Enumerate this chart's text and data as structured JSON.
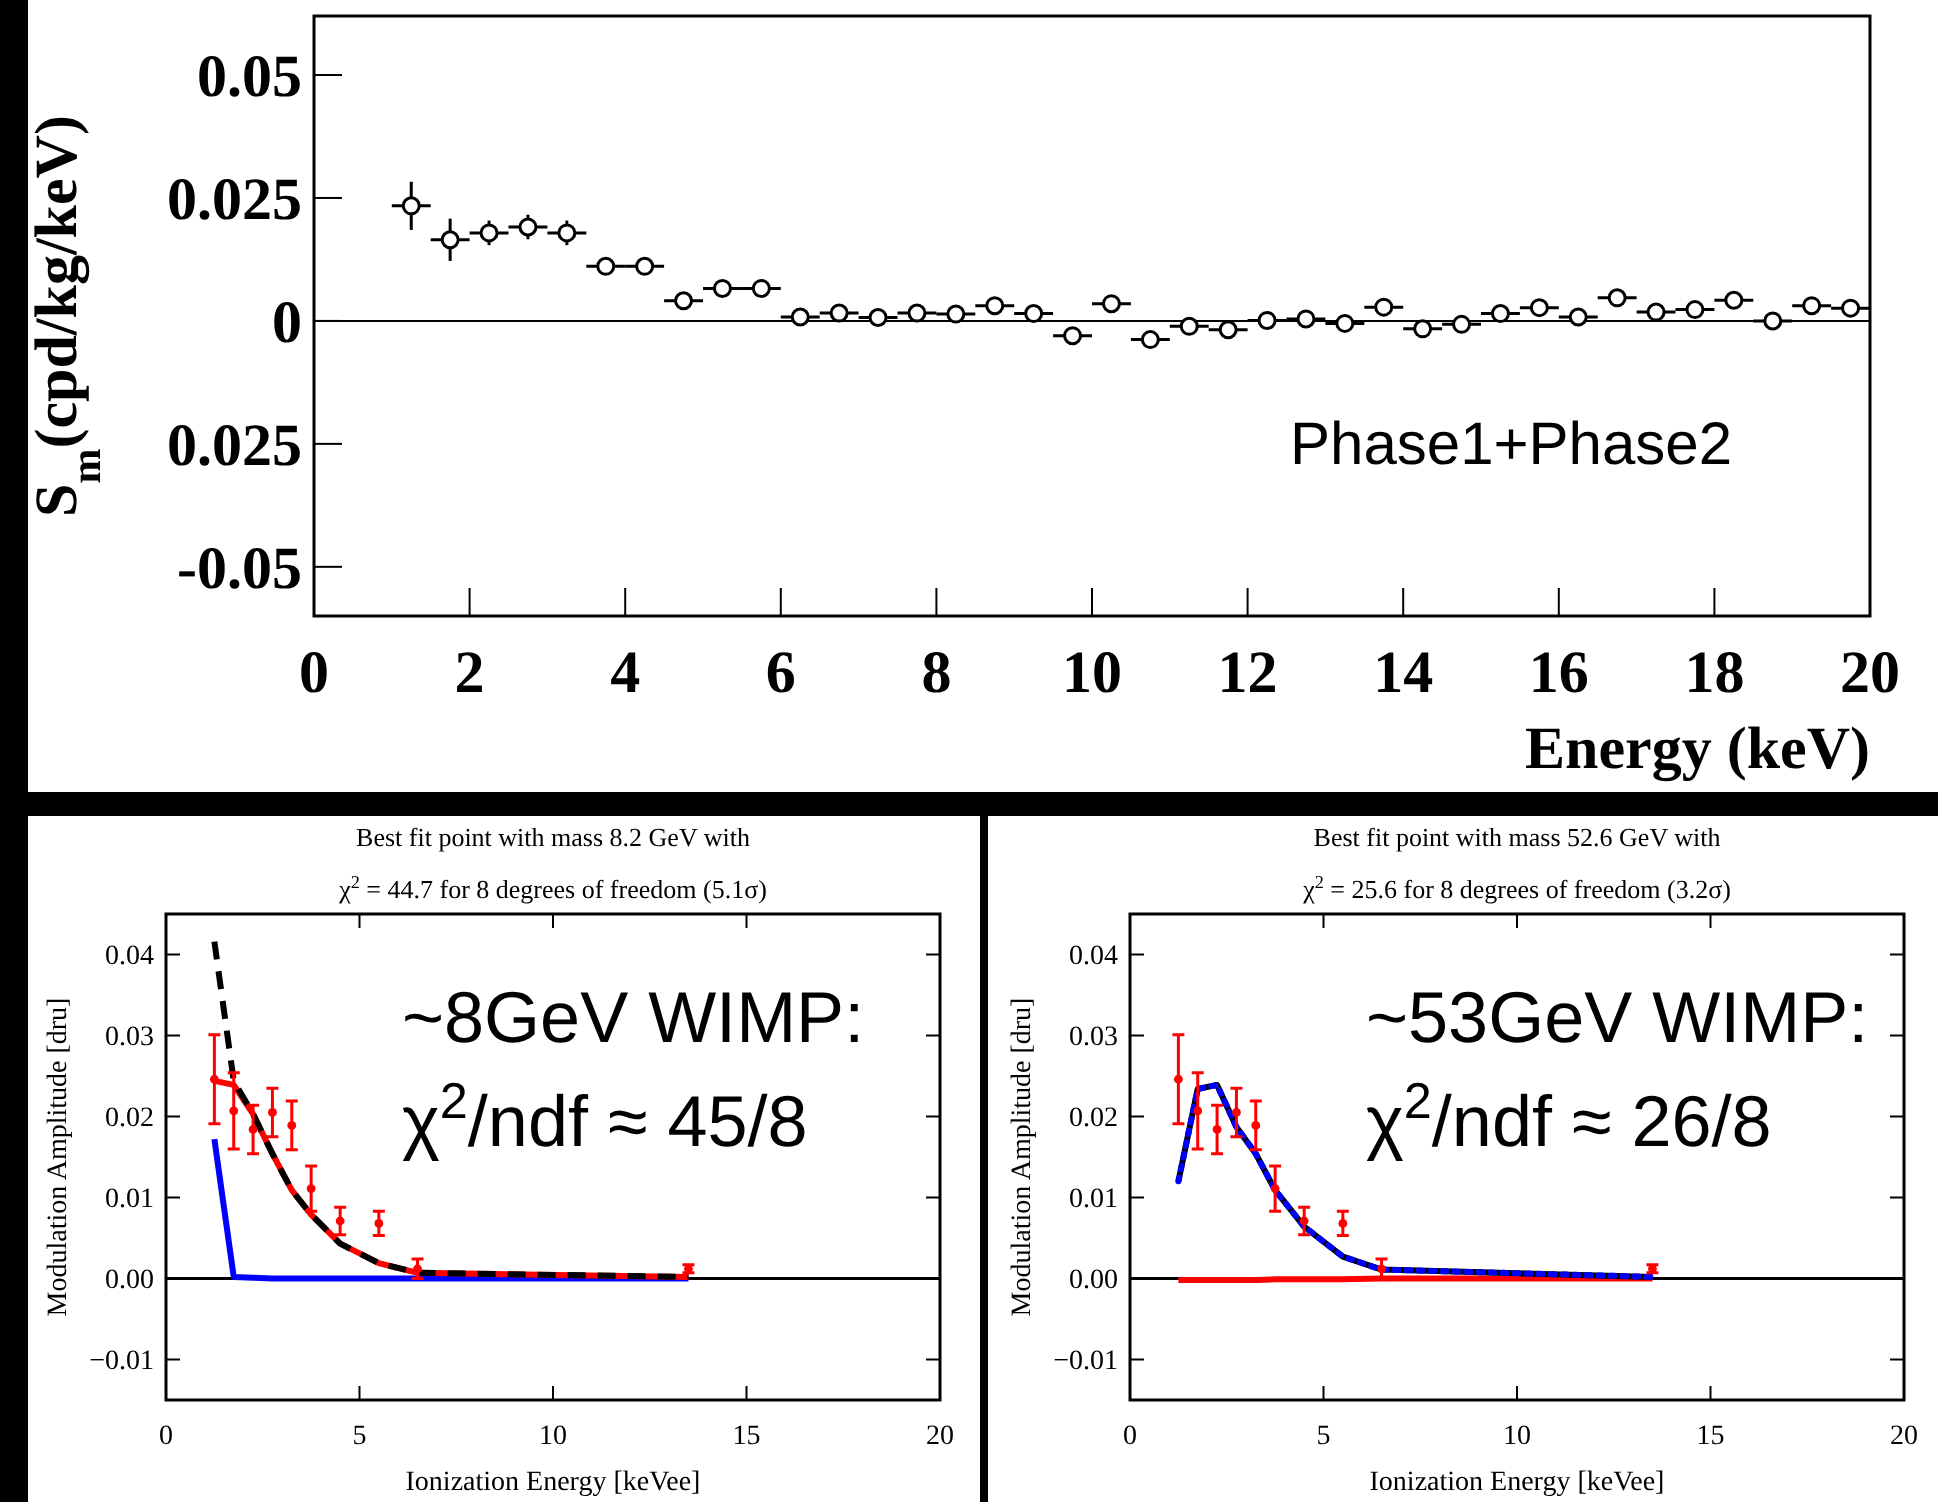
{
  "chart_data": [
    {
      "type": "scatter",
      "xlabel": "Energy (keV)",
      "ylabel": "S$_{m}$(cpd/kg/keV)",
      "annotations": [
        "Phase1+Phase2"
      ],
      "x": [
        1.25,
        1.75,
        2.25,
        2.75,
        3.25,
        3.75,
        4.25,
        4.75,
        5.25,
        5.75,
        6.25,
        6.75,
        7.25,
        7.75,
        8.25,
        8.75,
        9.25,
        9.75,
        10.25,
        10.75,
        11.25,
        11.75,
        12.25,
        12.75,
        13.25,
        13.75,
        14.25,
        14.75,
        15.25,
        15.75,
        16.25,
        16.75,
        17.25,
        17.75,
        18.25,
        18.75,
        19.25,
        19.75
      ],
      "xlim": [
        0,
        20
      ],
      "xticks": [
        0,
        2,
        4,
        6,
        8,
        10,
        12,
        14,
        16,
        18,
        20
      ],
      "ylim": [
        -0.06,
        0.062
      ],
      "yticks": [
        {
          "value": 0.05,
          "label": "0.05"
        },
        {
          "value": 0.025,
          "label": "0.025"
        },
        0,
        {
          "value": -0.025,
          "label": "0.025"
        },
        {
          "value": -0.05,
          "label": "-0.05"
        }
      ],
      "ref_lines": [
        {
          "axis": "y",
          "value": 0,
          "color": "#000000"
        }
      ],
      "marker": "circle",
      "grid": false,
      "series": [
        {
          "color": "#000000",
          "values": [
            0.0234,
            0.0165,
            0.0179,
            0.0191,
            0.0179,
            0.0111,
            0.0111,
            0.0041,
            0.0066,
            0.0066,
            0.0008,
            0.0016,
            0.0007,
            0.0016,
            0.0014,
            0.0031,
            0.0015,
            -0.003,
            0.0035,
            -0.0038,
            -0.0011,
            -0.0018,
            0.0001,
            0.0004,
            -0.0005,
            0.0028,
            -0.0016,
            -0.0007,
            0.0015,
            0.0027,
            0.0008,
            0.0047,
            0.0018,
            0.0023,
            0.0042,
            0,
            0.0031,
            0.0026
          ],
          "errors": [
            0.0049,
            0.0043,
            0.0025,
            0.0025,
            0.0025,
            0.0015,
            0.0015,
            0.0015,
            0.0012,
            0.0012,
            0.0012,
            0.0012,
            0.0012,
            0.0012,
            0.0012,
            0.0012,
            0.0012,
            0.0012,
            0.0012,
            0.0012,
            0.0012,
            0.0012,
            0.0012,
            0.0012,
            0.0012,
            0.0012,
            0.0012,
            0.0012,
            0.0012,
            0.0012,
            0.0012,
            0.0012,
            0.0012,
            0.0012,
            0.0012,
            0.0012,
            0.0012,
            0.0012
          ],
          "xerrors": [
            0.25,
            0.25,
            0.25,
            0.25,
            0.25,
            0.25,
            0.25,
            0.25,
            0.25,
            0.25,
            0.25,
            0.25,
            0.25,
            0.25,
            0.25,
            0.25,
            0.25,
            0.25,
            0.25,
            0.25,
            0.25,
            0.25,
            0.25,
            0.25,
            0.25,
            0.25,
            0.25,
            0.25,
            0.25,
            0.25,
            0.25,
            0.25,
            0.25,
            0.25,
            0.25,
            0.25,
            0.25,
            0.25
          ]
        }
      ]
    },
    {
      "type": "line",
      "title": "Best fit point with mass 8.2 GeV with",
      "subtitle": "χ$^{2}$ = 44.7 for 8 degrees of freedom (5.1σ)",
      "xlabel": "Ionization Energy [keVee]",
      "ylabel": "Modulation Amplitude [dru]",
      "annotations": [
        "~8GeV WIMP:",
        "χ$^{2}$/ndf ≈ 45/8"
      ],
      "x": [
        1.25,
        1.75,
        2.25,
        2.75,
        3.25,
        3.75,
        4.5,
        5.5,
        6.5,
        13.5
      ],
      "xlim": [
        0,
        20
      ],
      "xticks": [
        0,
        5,
        10,
        15,
        20
      ],
      "ylim": [
        -0.015,
        0.045
      ],
      "yticks": [
        0.04,
        0.03,
        0.02,
        0.01,
        {
          "value": 0,
          "label": "0.00"
        },
        {
          "value": -0.01,
          "label": "−0.01"
        }
      ],
      "ref_lines": [
        {
          "axis": "y",
          "value": 0,
          "color": "#000000"
        }
      ],
      "grid": false,
      "series": [
        {
          "color": "#0000ff",
          "line_style": "solid",
          "values": [
            0.0172,
            0.0002,
            0.0001,
            0,
            0,
            0,
            0,
            0,
            0,
            0
          ]
        },
        {
          "color": "#ff0000",
          "line_style": "solid",
          "values": [
            0.0244,
            0.0239,
            0.0203,
            0.0154,
            0.0109,
            0.0079,
            0.0043,
            0.0019,
            0.0007,
            0.0002
          ]
        },
        {
          "color": "#000000",
          "line_style": "dashed",
          "values": [
            0.0416,
            0.0244,
            0.0203,
            0.0154,
            0.0109,
            0.0079,
            0.0043,
            0.0019,
            0.0007,
            0.0002
          ]
        },
        {
          "type": "scatter",
          "marker": "circle",
          "color": "#ff0000",
          "values": [
            0.0246,
            0.0207,
            0.0184,
            0.0205,
            0.0189,
            0.0111,
            0.0071,
            0.0068,
            0.0012,
            0.0012
          ],
          "errors": [
            0.0055,
            0.0047,
            0.003,
            0.003,
            0.003,
            0.0028,
            0.0017,
            0.0015,
            0.0012,
            0.0005
          ]
        }
      ]
    },
    {
      "type": "line",
      "title": "Best fit point with mass 52.6 GeV with",
      "subtitle": "χ$^{2}$ = 25.6 for 8 degrees of freedom (3.2σ)",
      "xlabel": "Ionization Energy [keVee]",
      "ylabel": "Modulation Amplitude [dru]",
      "annotations": [
        "~53GeV WIMP:",
        "χ$^{2}$/ndf ≈ 26/8"
      ],
      "x": [
        1.25,
        1.75,
        2.25,
        2.75,
        3.25,
        3.75,
        4.5,
        5.5,
        6.5,
        13.5
      ],
      "xlim": [
        0,
        20
      ],
      "xticks": [
        0,
        5,
        10,
        15,
        20
      ],
      "ylim": [
        -0.015,
        0.045
      ],
      "yticks": [
        0.04,
        0.03,
        0.02,
        0.01,
        {
          "value": 0,
          "label": "0.00"
        },
        {
          "value": -0.01,
          "label": "−0.01"
        }
      ],
      "ref_lines": [
        {
          "axis": "y",
          "value": 0,
          "color": "#000000"
        }
      ],
      "grid": false,
      "series": [
        {
          "color": "#ff0000",
          "line_style": "solid",
          "values": [
            -0.0002,
            -0.0002,
            -0.0002,
            -0.0002,
            -0.0002,
            -0.0001,
            -0.0001,
            -0.0001,
            0,
            0
          ]
        },
        {
          "color": "#000000",
          "line_style": "solid",
          "values": [
            0.012,
            0.0234,
            0.0239,
            0.0187,
            0.0154,
            0.0109,
            0.0064,
            0.0027,
            0.0011,
            0.0002
          ]
        },
        {
          "color": "#0000ff",
          "line_style": "dotted",
          "values": [
            0.012,
            0.0234,
            0.0239,
            0.0187,
            0.0154,
            0.0109,
            0.0064,
            0.0027,
            0.0011,
            0.0002
          ]
        },
        {
          "type": "scatter",
          "marker": "circle",
          "color": "#ff0000",
          "values": [
            0.0246,
            0.0207,
            0.0184,
            0.0205,
            0.0189,
            0.0111,
            0.0071,
            0.0068,
            0.0012,
            0.0012
          ],
          "errors": [
            0.0055,
            0.0047,
            0.003,
            0.003,
            0.003,
            0.0028,
            0.0017,
            0.0015,
            0.0012,
            0.0005
          ]
        }
      ]
    }
  ]
}
